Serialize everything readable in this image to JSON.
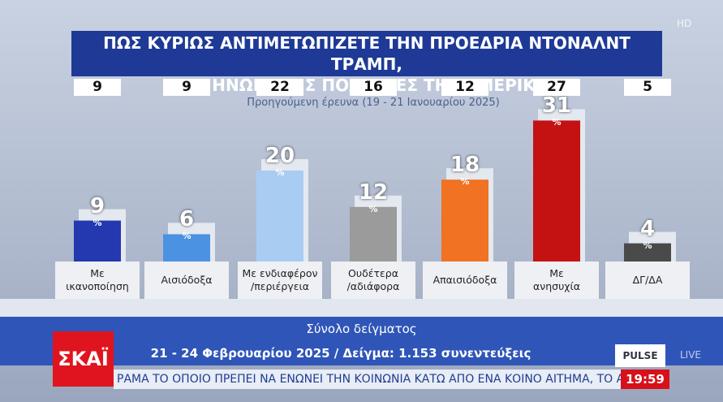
{
  "chart_data": {
    "type": "bar",
    "title": "ΠΩΣ ΚΥΡΙΩΣ ΑΝΤΙΜΕΤΩΠΙΖΕΤΕ ΤΗΝ ΠΡΟΕΔΡΙΑ ΝΤΟΝΑΛΝΤ ΤΡΑΜΠ,\nΣΤΙΣ ΗΝΩΜΕΝΕΣ ΠΟΛΙΤΕΙΕΣ ΤΗΣ ΑΜΕΡΙΚΗΣ;",
    "subtitle": "Προηγούμενη έρευνα (19 - 21 Ιανουαρίου 2025)",
    "unit": "%",
    "categories": [
      "Με\nικανοποίηση",
      "Αισιόδοξα",
      "Με ενδιαφέρον\n/περιέργεια",
      "Ουδέτερα\n/αδιάφορα",
      "Απαισιόδοξα",
      "Με\nανησυχία",
      "ΔΓ/ΔΑ"
    ],
    "values": [
      9,
      6,
      20,
      12,
      18,
      31,
      4
    ],
    "colors": [
      "#2438b0",
      "#4b92e2",
      "#a9cdf2",
      "#9b9b9b",
      "#f07222",
      "#c41212",
      "#4a4a4a"
    ],
    "previous_values": [
      9,
      9,
      22,
      16,
      12,
      27,
      5
    ]
  },
  "footer": {
    "sample_label": "Σύνολο δείγματος",
    "details": "21 - 24 Φεβρουαρίου 2025 / Δείγμα: 1.153 συνεντεύξεις"
  },
  "broadcast": {
    "channel": "ΣΚΑΪ",
    "badge": "HD",
    "live": "LIVE",
    "pollster": "PULSE",
    "ticker": "ΡΑΜΑ ΤΟ ΟΠΟΙΟ ΠΡΕΠΕΙ ΝΑ ΕΝΩΝΕΙ ΤΗΝ ΚΟΙΝΩΝΙΑ ΚΑΤΩ ΑΠΟ ΕΝΑ ΚΟΙΝΟ ΑΙΤΗΜΑ, ΤΟ ΑΙΤΗΜ",
    "time": "19:59"
  }
}
